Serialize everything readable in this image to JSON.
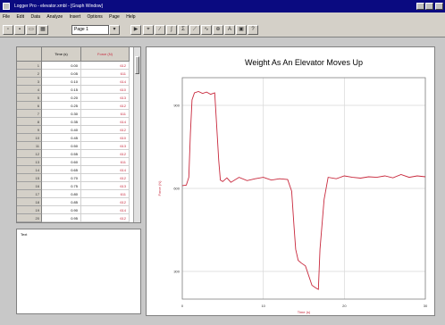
{
  "window": {
    "title": "Logger Pro - elevator.xmbl - [Graph Window]"
  },
  "menu": [
    "File",
    "Edit",
    "Data",
    "Analyze",
    "Insert",
    "Options",
    "Page",
    "Help"
  ],
  "toolbar": {
    "page_select": "Page 1"
  },
  "table": {
    "columns": [
      "Time (s)",
      "Force (N)"
    ],
    "rows": [
      [
        "0.00",
        "612"
      ],
      [
        "0.05",
        "611"
      ],
      [
        "0.10",
        "614"
      ],
      [
        "0.15",
        "610"
      ],
      [
        "0.20",
        "613"
      ],
      [
        "0.25",
        "612"
      ],
      [
        "0.30",
        "611"
      ],
      [
        "0.35",
        "614"
      ],
      [
        "0.40",
        "612"
      ],
      [
        "0.45",
        "610"
      ],
      [
        "0.50",
        "613"
      ],
      [
        "0.55",
        "612"
      ],
      [
        "0.60",
        "611"
      ],
      [
        "0.65",
        "614"
      ],
      [
        "0.70",
        "612"
      ],
      [
        "0.75",
        "613"
      ],
      [
        "0.80",
        "611"
      ],
      [
        "0.85",
        "612"
      ],
      [
        "0.90",
        "614"
      ],
      [
        "0.95",
        "612"
      ]
    ]
  },
  "text_pane": {
    "label": "Text"
  },
  "chart_data": {
    "type": "line",
    "title": "Weight As An Elevator Moves Up",
    "xlabel": "Time (s)",
    "ylabel": "Force (N)",
    "xlim": [
      0,
      30
    ],
    "ylim": [
      200,
      1000
    ],
    "yticks": [
      300,
      600,
      900
    ],
    "xticks": [
      0,
      10,
      20,
      30
    ],
    "grid": true,
    "color": "#c8283c",
    "series": [
      {
        "x": [
          0,
          0.5,
          0.8,
          1.0,
          1.2,
          1.5,
          2.0,
          2.5,
          3.0,
          3.5,
          4.0,
          4.5,
          4.7,
          5.0,
          5.5,
          6,
          7,
          8,
          9,
          10,
          11,
          12,
          13,
          13.5,
          13.8,
          14.0,
          14.3,
          14.7,
          15.2,
          16,
          16.5,
          16.8,
          17.0,
          17.5,
          18,
          19,
          20,
          21,
          22,
          23,
          24,
          25,
          26,
          27,
          28,
          29,
          30
        ],
        "y": [
          610,
          612,
          640,
          800,
          920,
          945,
          950,
          943,
          948,
          940,
          945,
          700,
          630,
          625,
          638,
          622,
          640,
          628,
          635,
          640,
          630,
          635,
          632,
          590,
          460,
          380,
          340,
          330,
          320,
          250,
          240,
          235,
          380,
          560,
          640,
          635,
          645,
          640,
          637,
          642,
          640,
          645,
          638,
          650,
          640,
          645,
          642
        ]
      }
    ]
  }
}
